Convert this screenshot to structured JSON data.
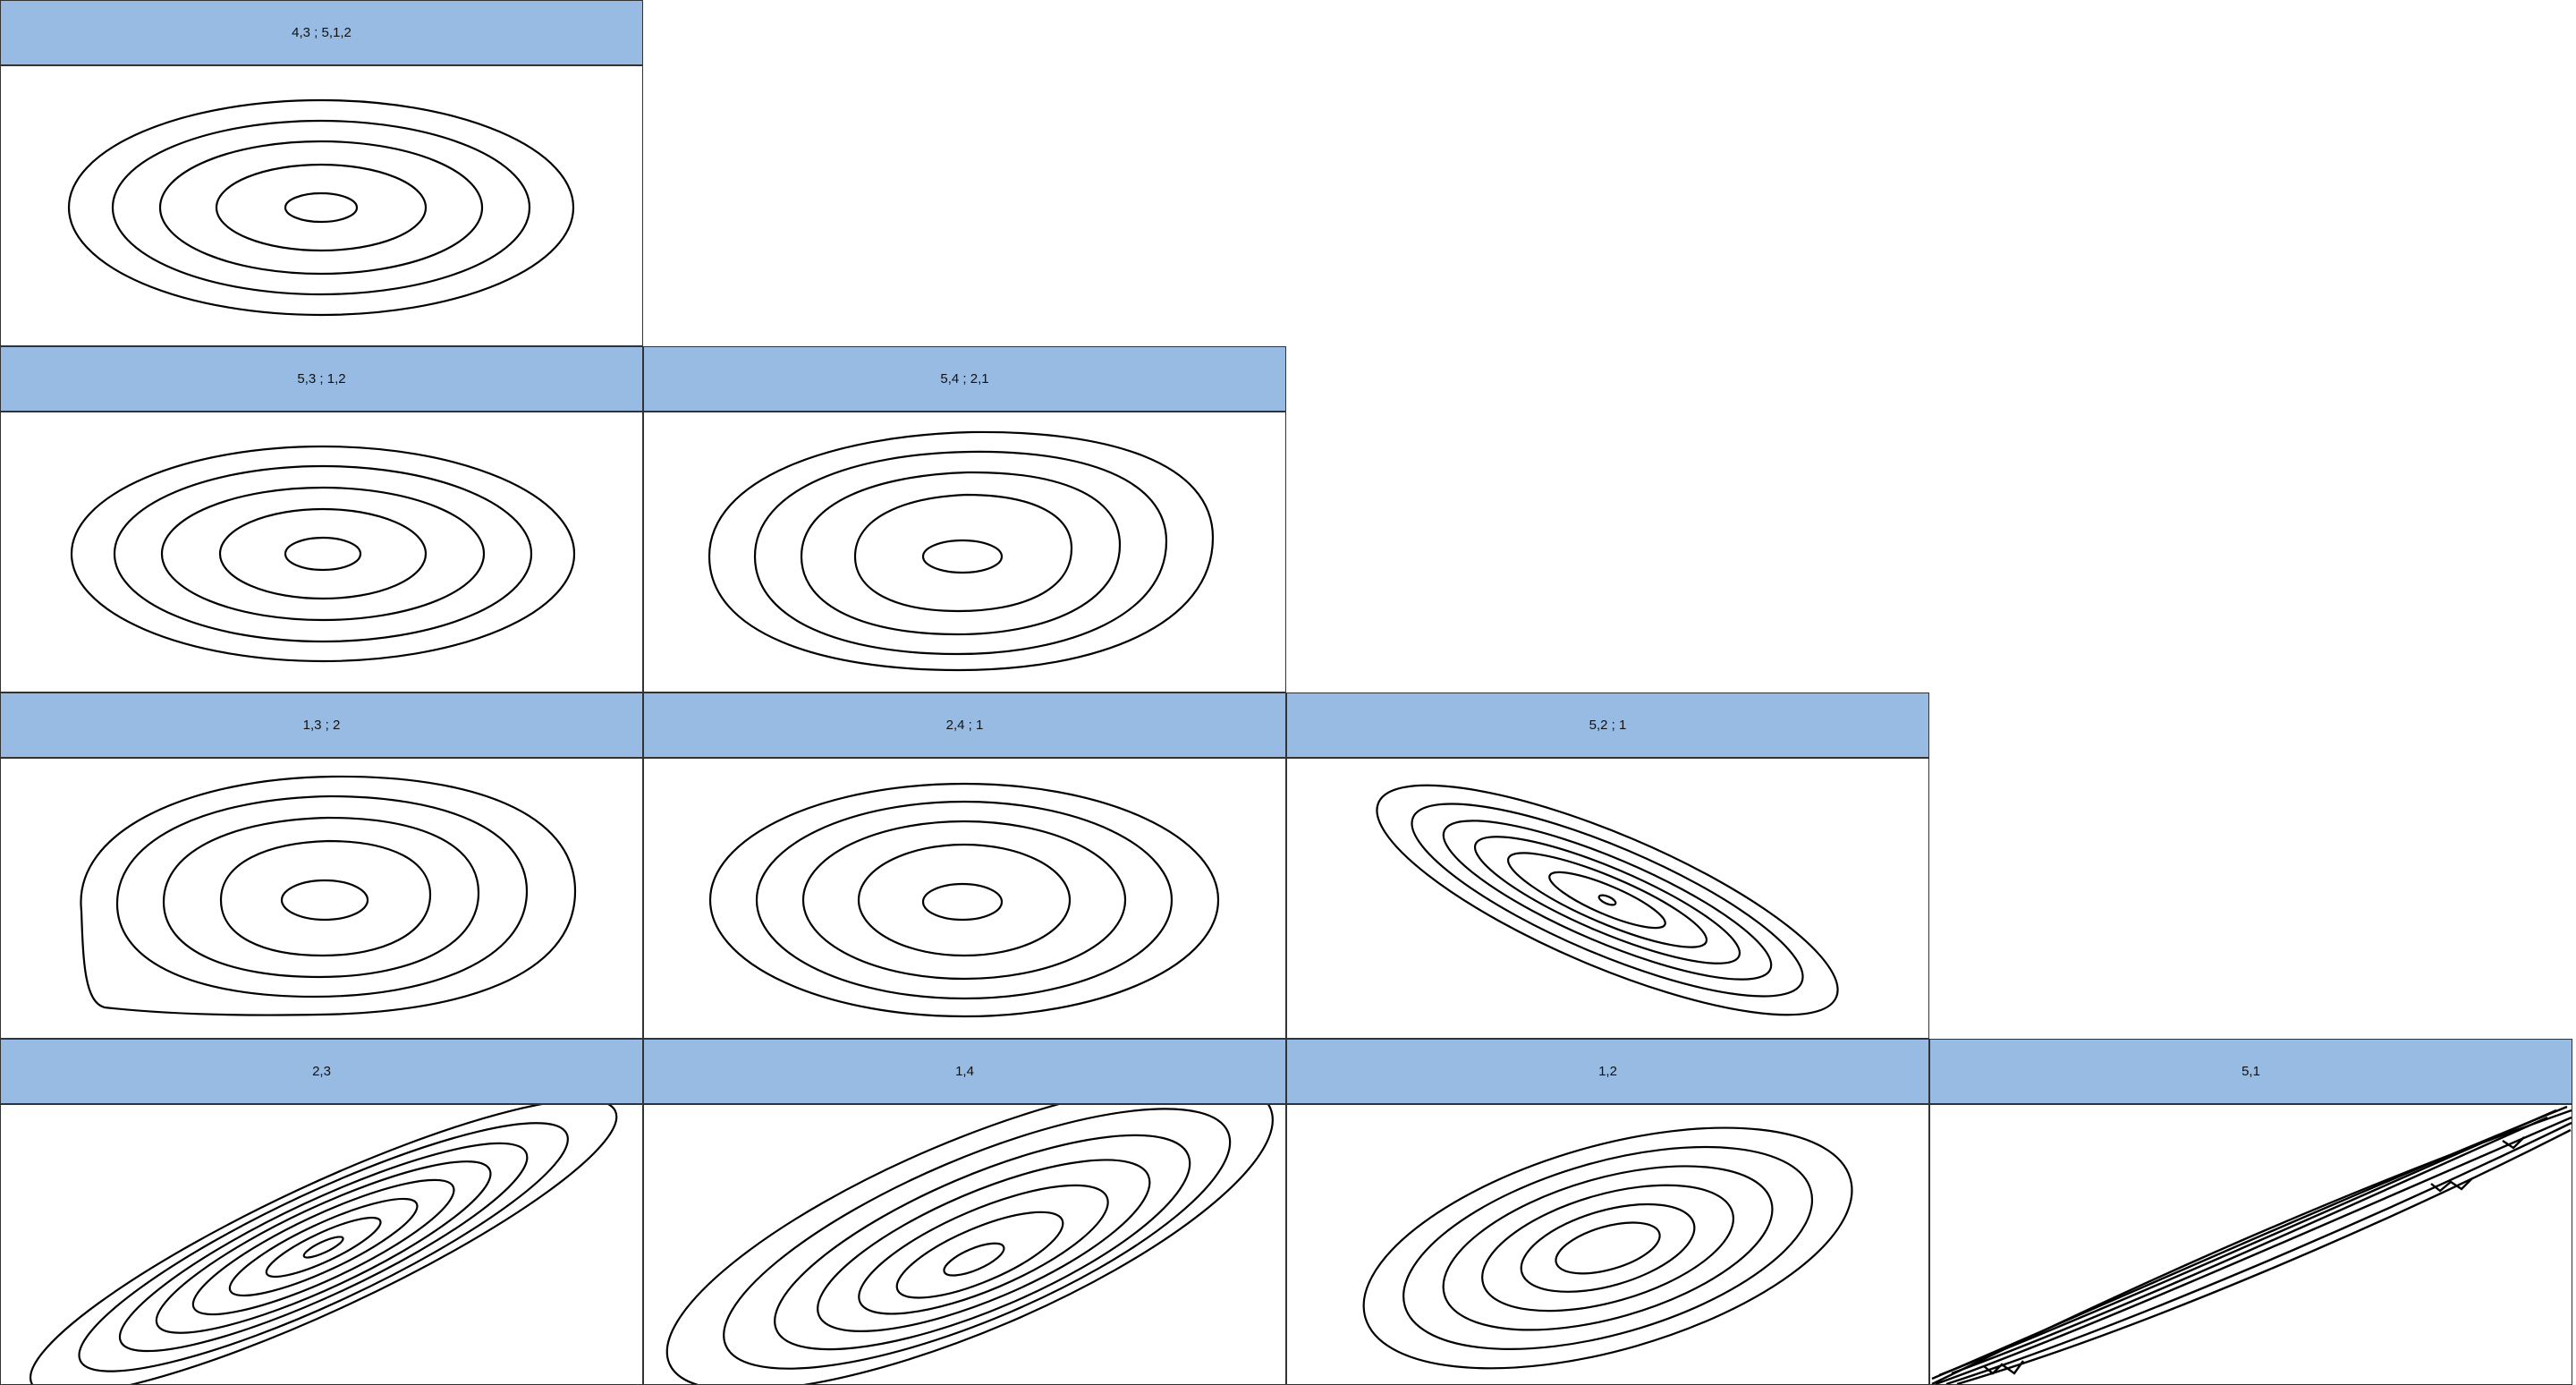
{
  "colors": {
    "header_fill": "#98bbe3",
    "border": "#333333",
    "contour": "#000000",
    "background": "#ffffff"
  },
  "chart_data": [
    {
      "type": "contour",
      "title": "4,3 ; 5,1,2",
      "grid_row": 0,
      "grid_col": 0,
      "shape": "ellipse",
      "center": [
        0,
        0
      ],
      "contour_levels": [
        0.03,
        0.25,
        0.58,
        1.0,
        1.5
      ],
      "mean_radius": [
        160,
        40
      ]
    },
    {
      "type": "contour",
      "title": "5,3 ; 1,2",
      "grid_row": 1,
      "grid_col": 0,
      "shape": "ellipse",
      "center": [
        0,
        0
      ],
      "contour_levels": [
        0.03,
        0.25,
        0.58,
        1.0,
        1.5
      ],
      "mean_radius": [
        160,
        40
      ]
    },
    {
      "type": "contour",
      "title": "5,4 ; 2,1",
      "grid_row": 1,
      "grid_col": 1,
      "shape": "ellipse-skewed",
      "center": [
        0,
        0
      ],
      "contour_levels": [
        0.03,
        0.25,
        0.58,
        1.0,
        1.5
      ],
      "mean_radius": [
        160,
        40
      ]
    },
    {
      "type": "contour",
      "title": "1,3 ; 2",
      "grid_row": 2,
      "grid_col": 0,
      "shape": "ellipse-skewed",
      "center": [
        0,
        0
      ],
      "contour_levels": [
        0.03,
        0.25,
        0.58,
        1.0,
        1.5
      ],
      "mean_radius": [
        160,
        40
      ]
    },
    {
      "type": "contour",
      "title": "2,4 ; 1",
      "grid_row": 2,
      "grid_col": 1,
      "shape": "ellipse",
      "center": [
        0,
        0
      ],
      "contour_levels": [
        0.03,
        0.25,
        0.58,
        1.0,
        1.5
      ],
      "mean_radius": [
        160,
        40
      ]
    },
    {
      "type": "contour",
      "title": "5,2 ; 1",
      "grid_row": 2,
      "grid_col": 2,
      "shape": "negative-correlation",
      "center": [
        0,
        0
      ],
      "contour_levels": [
        0.01,
        0.1,
        0.25,
        0.45,
        0.7,
        0.95,
        1.25
      ],
      "correlation": -0.6
    },
    {
      "type": "contour",
      "title": "2,3",
      "grid_row": 3,
      "grid_col": 0,
      "shape": "positive-correlation",
      "center": [
        0,
        0
      ],
      "contour_levels": [
        0.05,
        0.15,
        0.3,
        0.45,
        0.6,
        0.78,
        1.0,
        1.25
      ],
      "correlation": 0.85
    },
    {
      "type": "contour",
      "title": "1,4",
      "grid_row": 3,
      "grid_col": 1,
      "shape": "positive-correlation",
      "center": [
        0,
        0
      ],
      "contour_levels": [
        0.05,
        0.2,
        0.38,
        0.58,
        0.8,
        1.05,
        1.3
      ],
      "correlation": 0.75
    },
    {
      "type": "contour",
      "title": "1,2",
      "grid_row": 3,
      "grid_col": 2,
      "shape": "positive-correlation",
      "center": [
        0,
        0
      ],
      "contour_levels": [
        0.1,
        0.28,
        0.48,
        0.7,
        0.95,
        1.22
      ],
      "correlation": 0.45
    },
    {
      "type": "contour",
      "title": "5,1",
      "grid_row": 3,
      "grid_col": 3,
      "shape": "degenerate-line",
      "center": [
        0,
        0
      ],
      "contour_levels": [
        0.3,
        0.6,
        0.9,
        1.2
      ],
      "correlation": 0.99
    }
  ]
}
